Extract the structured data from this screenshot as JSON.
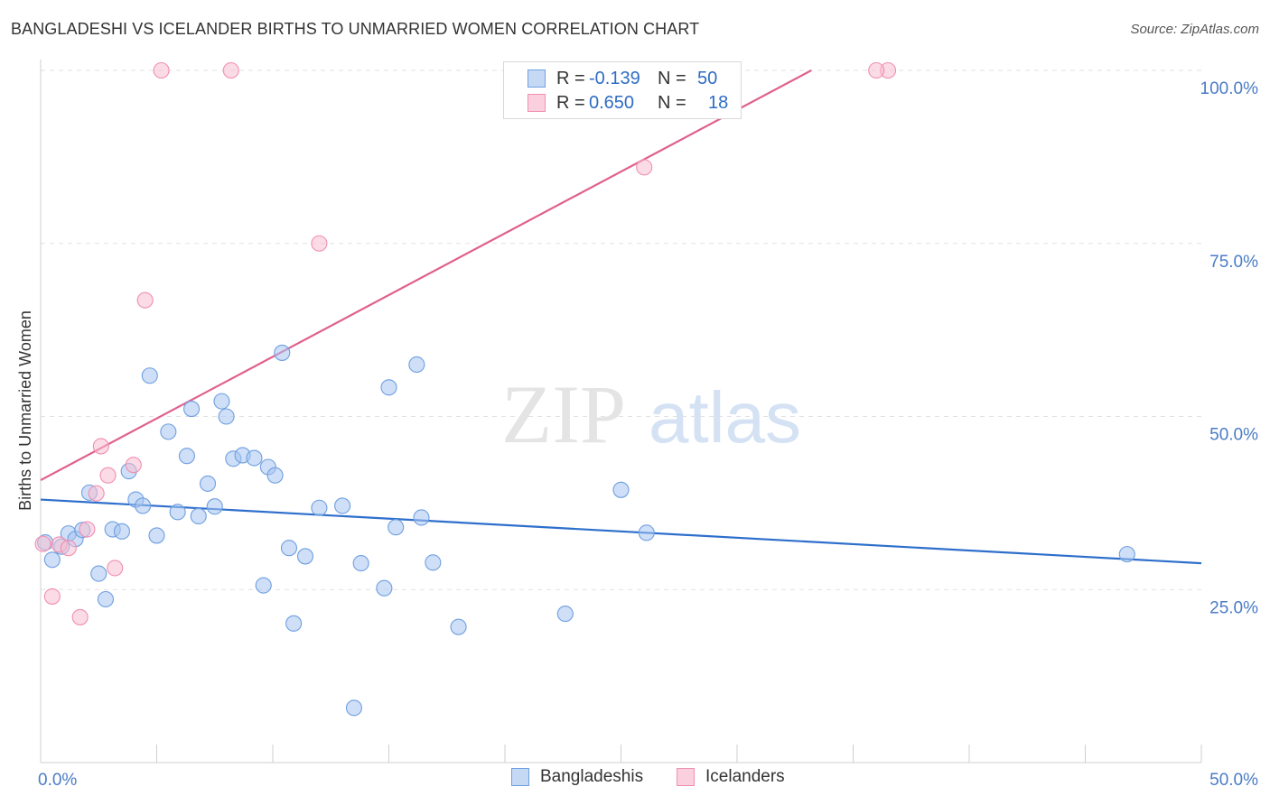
{
  "title": "BANGLADESHI VS ICELANDER BIRTHS TO UNMARRIED WOMEN CORRELATION CHART",
  "source": "Source: ZipAtlas.com",
  "watermark": {
    "zip": "ZIP",
    "atlas": "atlas"
  },
  "legend": {
    "r_label": "R =",
    "n_label": "N =",
    "rows": [
      {
        "r": "-0.139",
        "n": "50"
      },
      {
        "r": "0.650",
        "n": "18"
      }
    ]
  },
  "chart_data": {
    "type": "scatter",
    "title": "BANGLADESHI VS ICELANDER BIRTHS TO UNMARRIED WOMEN CORRELATION CHART",
    "xlabel": "",
    "ylabel": "Births to Unmarried Women",
    "xlim": [
      0,
      50
    ],
    "ylim": [
      0,
      100
    ],
    "x_tick_labels": [
      "0.0%",
      "50.0%"
    ],
    "y_ticks": [
      {
        "value": 25,
        "label": "25.0%"
      },
      {
        "value": 50,
        "label": "50.0%"
      },
      {
        "value": 75,
        "label": "75.0%"
      },
      {
        "value": 100,
        "label": "100.0%"
      }
    ],
    "grid": true,
    "colors": {
      "Bangladeshis": "#6f9fe0",
      "Icelanders": "#f08fb0",
      "blue_line": "#2e6fcc",
      "pink_line": "#e0608e"
    },
    "series": [
      {
        "name": "Bangladeshis",
        "r": -0.139,
        "n": 50,
        "trend": {
          "x": [
            0,
            50
          ],
          "y": [
            38.0,
            28.8
          ]
        },
        "points": [
          [
            0.2,
            31.8
          ],
          [
            0.5,
            29.3
          ],
          [
            0.9,
            31.2
          ],
          [
            1.2,
            33.1
          ],
          [
            1.5,
            32.3
          ],
          [
            1.8,
            33.6
          ],
          [
            2.1,
            39.0
          ],
          [
            2.5,
            27.3
          ],
          [
            2.8,
            23.6
          ],
          [
            3.1,
            33.7
          ],
          [
            3.5,
            33.4
          ],
          [
            3.8,
            42.1
          ],
          [
            4.1,
            38.0
          ],
          [
            4.4,
            37.1
          ],
          [
            4.7,
            55.9
          ],
          [
            5.0,
            32.8
          ],
          [
            5.5,
            47.8
          ],
          [
            5.9,
            36.2
          ],
          [
            6.3,
            44.3
          ],
          [
            6.5,
            51.1
          ],
          [
            6.8,
            35.6
          ],
          [
            7.2,
            40.3
          ],
          [
            7.5,
            37.0
          ],
          [
            7.8,
            52.2
          ],
          [
            8.0,
            50.0
          ],
          [
            8.3,
            43.9
          ],
          [
            8.7,
            44.4
          ],
          [
            9.2,
            44.0
          ],
          [
            9.6,
            25.6
          ],
          [
            9.8,
            42.7
          ],
          [
            10.1,
            41.5
          ],
          [
            10.4,
            59.2
          ],
          [
            10.7,
            31.0
          ],
          [
            10.9,
            20.1
          ],
          [
            11.4,
            29.8
          ],
          [
            12.0,
            36.8
          ],
          [
            13.0,
            37.1
          ],
          [
            13.5,
            7.9
          ],
          [
            13.8,
            28.8
          ],
          [
            14.8,
            25.2
          ],
          [
            15.0,
            54.2
          ],
          [
            15.3,
            34.0
          ],
          [
            16.2,
            57.5
          ],
          [
            16.4,
            35.4
          ],
          [
            16.9,
            28.9
          ],
          [
            18.0,
            19.6
          ],
          [
            22.6,
            21.5
          ],
          [
            25.0,
            39.4
          ],
          [
            26.1,
            33.2
          ],
          [
            46.8,
            30.1
          ]
        ]
      },
      {
        "name": "Icelanders",
        "r": 0.65,
        "n": 18,
        "trend": {
          "x": [
            0,
            33.2
          ],
          "y": [
            40.8,
            100
          ]
        },
        "points": [
          [
            0.1,
            31.6
          ],
          [
            0.5,
            24.0
          ],
          [
            0.8,
            31.5
          ],
          [
            1.2,
            31.0
          ],
          [
            1.7,
            21.0
          ],
          [
            2.0,
            33.7
          ],
          [
            2.4,
            38.9
          ],
          [
            2.6,
            45.7
          ],
          [
            2.9,
            41.5
          ],
          [
            3.2,
            28.1
          ],
          [
            4.0,
            43.0
          ],
          [
            4.5,
            66.8
          ],
          [
            5.2,
            100
          ],
          [
            8.2,
            100
          ],
          [
            12.0,
            75.0
          ],
          [
            26.0,
            86.0
          ],
          [
            36.5,
            100
          ],
          [
            36.0,
            100
          ]
        ]
      }
    ]
  }
}
